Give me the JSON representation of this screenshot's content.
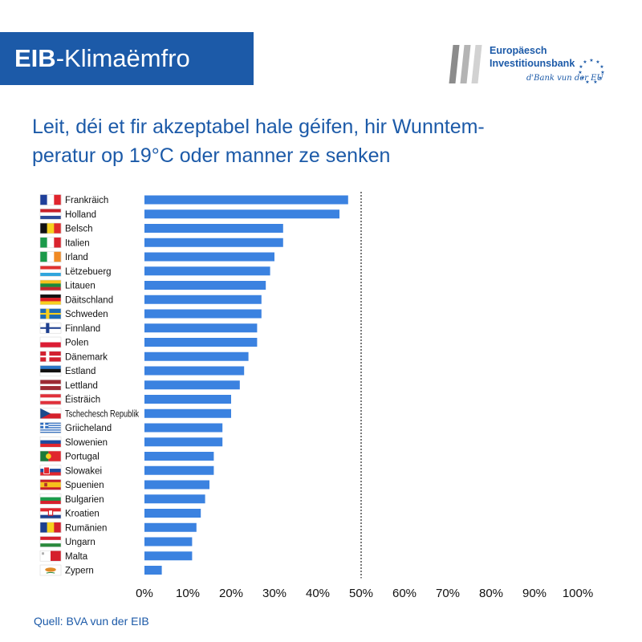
{
  "header": {
    "banner_bold": "EIB",
    "banner_rest": "-Klimaëmfro",
    "logo_line1": "Europäesch",
    "logo_line2": "Investitiounsbank",
    "logo_tagline": "d'Bank vun der EU"
  },
  "title_lines": [
    "Leit, déi et fir akzeptabel hale géifen, hir Wunntem-",
    "peratur op 19°C oder manner ze senken"
  ],
  "source": "Quell: BVA vun der EIB",
  "colors": {
    "accent": "#1c5aa8",
    "bar": "#3b82e0"
  },
  "chart_data": {
    "type": "bar",
    "orientation": "horizontal",
    "categories": [
      "Frankräich",
      "Holland",
      "Belsch",
      "Italien",
      "Irland",
      "Lëtzebuerg",
      "Litauen",
      "Däitschland",
      "Schweden",
      "Finnland",
      "Polen",
      "Dänemark",
      "Estland",
      "Lettland",
      "Éisträich",
      "Tschechesch Republik",
      "Griicheland",
      "Slowenien",
      "Portugal",
      "Slowakei",
      "Spuenien",
      "Bulgarien",
      "Kroatien",
      "Rumänien",
      "Ungarn",
      "Malta",
      "Zypern"
    ],
    "flag_icons": [
      "france-flag-icon",
      "netherlands-flag-icon",
      "belgium-flag-icon",
      "italy-flag-icon",
      "ireland-flag-icon",
      "luxembourg-flag-icon",
      "lithuania-flag-icon",
      "germany-flag-icon",
      "sweden-flag-icon",
      "finland-flag-icon",
      "poland-flag-icon",
      "denmark-flag-icon",
      "estonia-flag-icon",
      "latvia-flag-icon",
      "austria-flag-icon",
      "czech-republic-flag-icon",
      "greece-flag-icon",
      "slovenia-flag-icon",
      "portugal-flag-icon",
      "slovakia-flag-icon",
      "spain-flag-icon",
      "bulgaria-flag-icon",
      "croatia-flag-icon",
      "romania-flag-icon",
      "hungary-flag-icon",
      "malta-flag-icon",
      "cyprus-flag-icon"
    ],
    "values": [
      47,
      45,
      32,
      32,
      30,
      29,
      28,
      27,
      27,
      26,
      26,
      24,
      23,
      22,
      20,
      20,
      18,
      18,
      16,
      16,
      15,
      14,
      13,
      12,
      11,
      11,
      4
    ],
    "xlim": [
      0,
      100
    ],
    "xticks": [
      "0%",
      "10%",
      "20%",
      "30%",
      "40%",
      "50%",
      "60%",
      "70%",
      "80%",
      "90%",
      "100%"
    ],
    "reference_line": 50,
    "grid": false
  }
}
